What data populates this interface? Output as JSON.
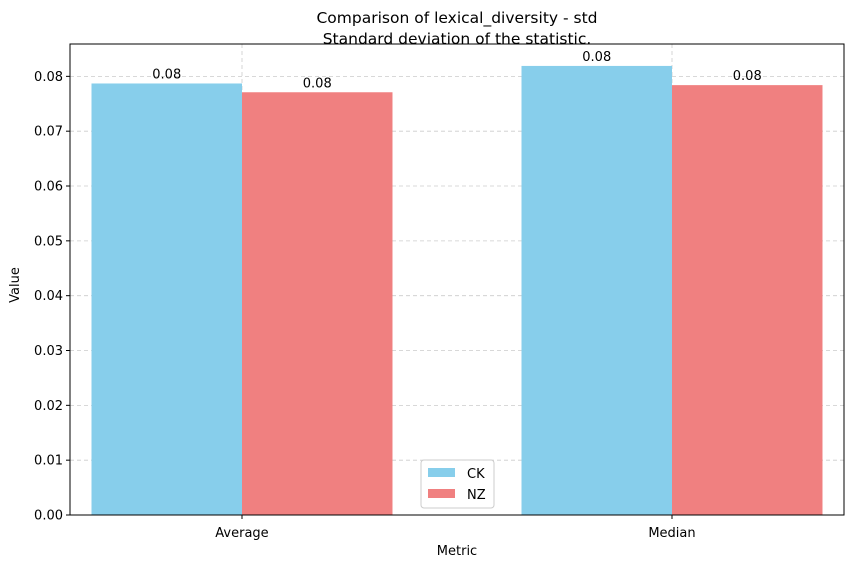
{
  "chart_data": {
    "type": "bar",
    "title": "Comparison of lexical_diversity - std",
    "subtitle": "Standard deviation of the statistic.",
    "xlabel": "Metric",
    "ylabel": "Value",
    "categories": [
      "Average",
      "Median"
    ],
    "series": [
      {
        "name": "CK",
        "color": "#87ceeb",
        "values": [
          0.0787,
          0.0819
        ],
        "labels": [
          "0.08",
          "0.08"
        ]
      },
      {
        "name": "NZ",
        "color": "#f08080",
        "values": [
          0.0771,
          0.0784
        ],
        "labels": [
          "0.08",
          "0.08"
        ]
      }
    ],
    "ylim": [
      0,
      0.0859
    ],
    "yticks": [
      "0.00",
      "0.01",
      "0.02",
      "0.03",
      "0.04",
      "0.05",
      "0.06",
      "0.07",
      "0.08"
    ],
    "grid": true,
    "legend_position": "lower center"
  }
}
